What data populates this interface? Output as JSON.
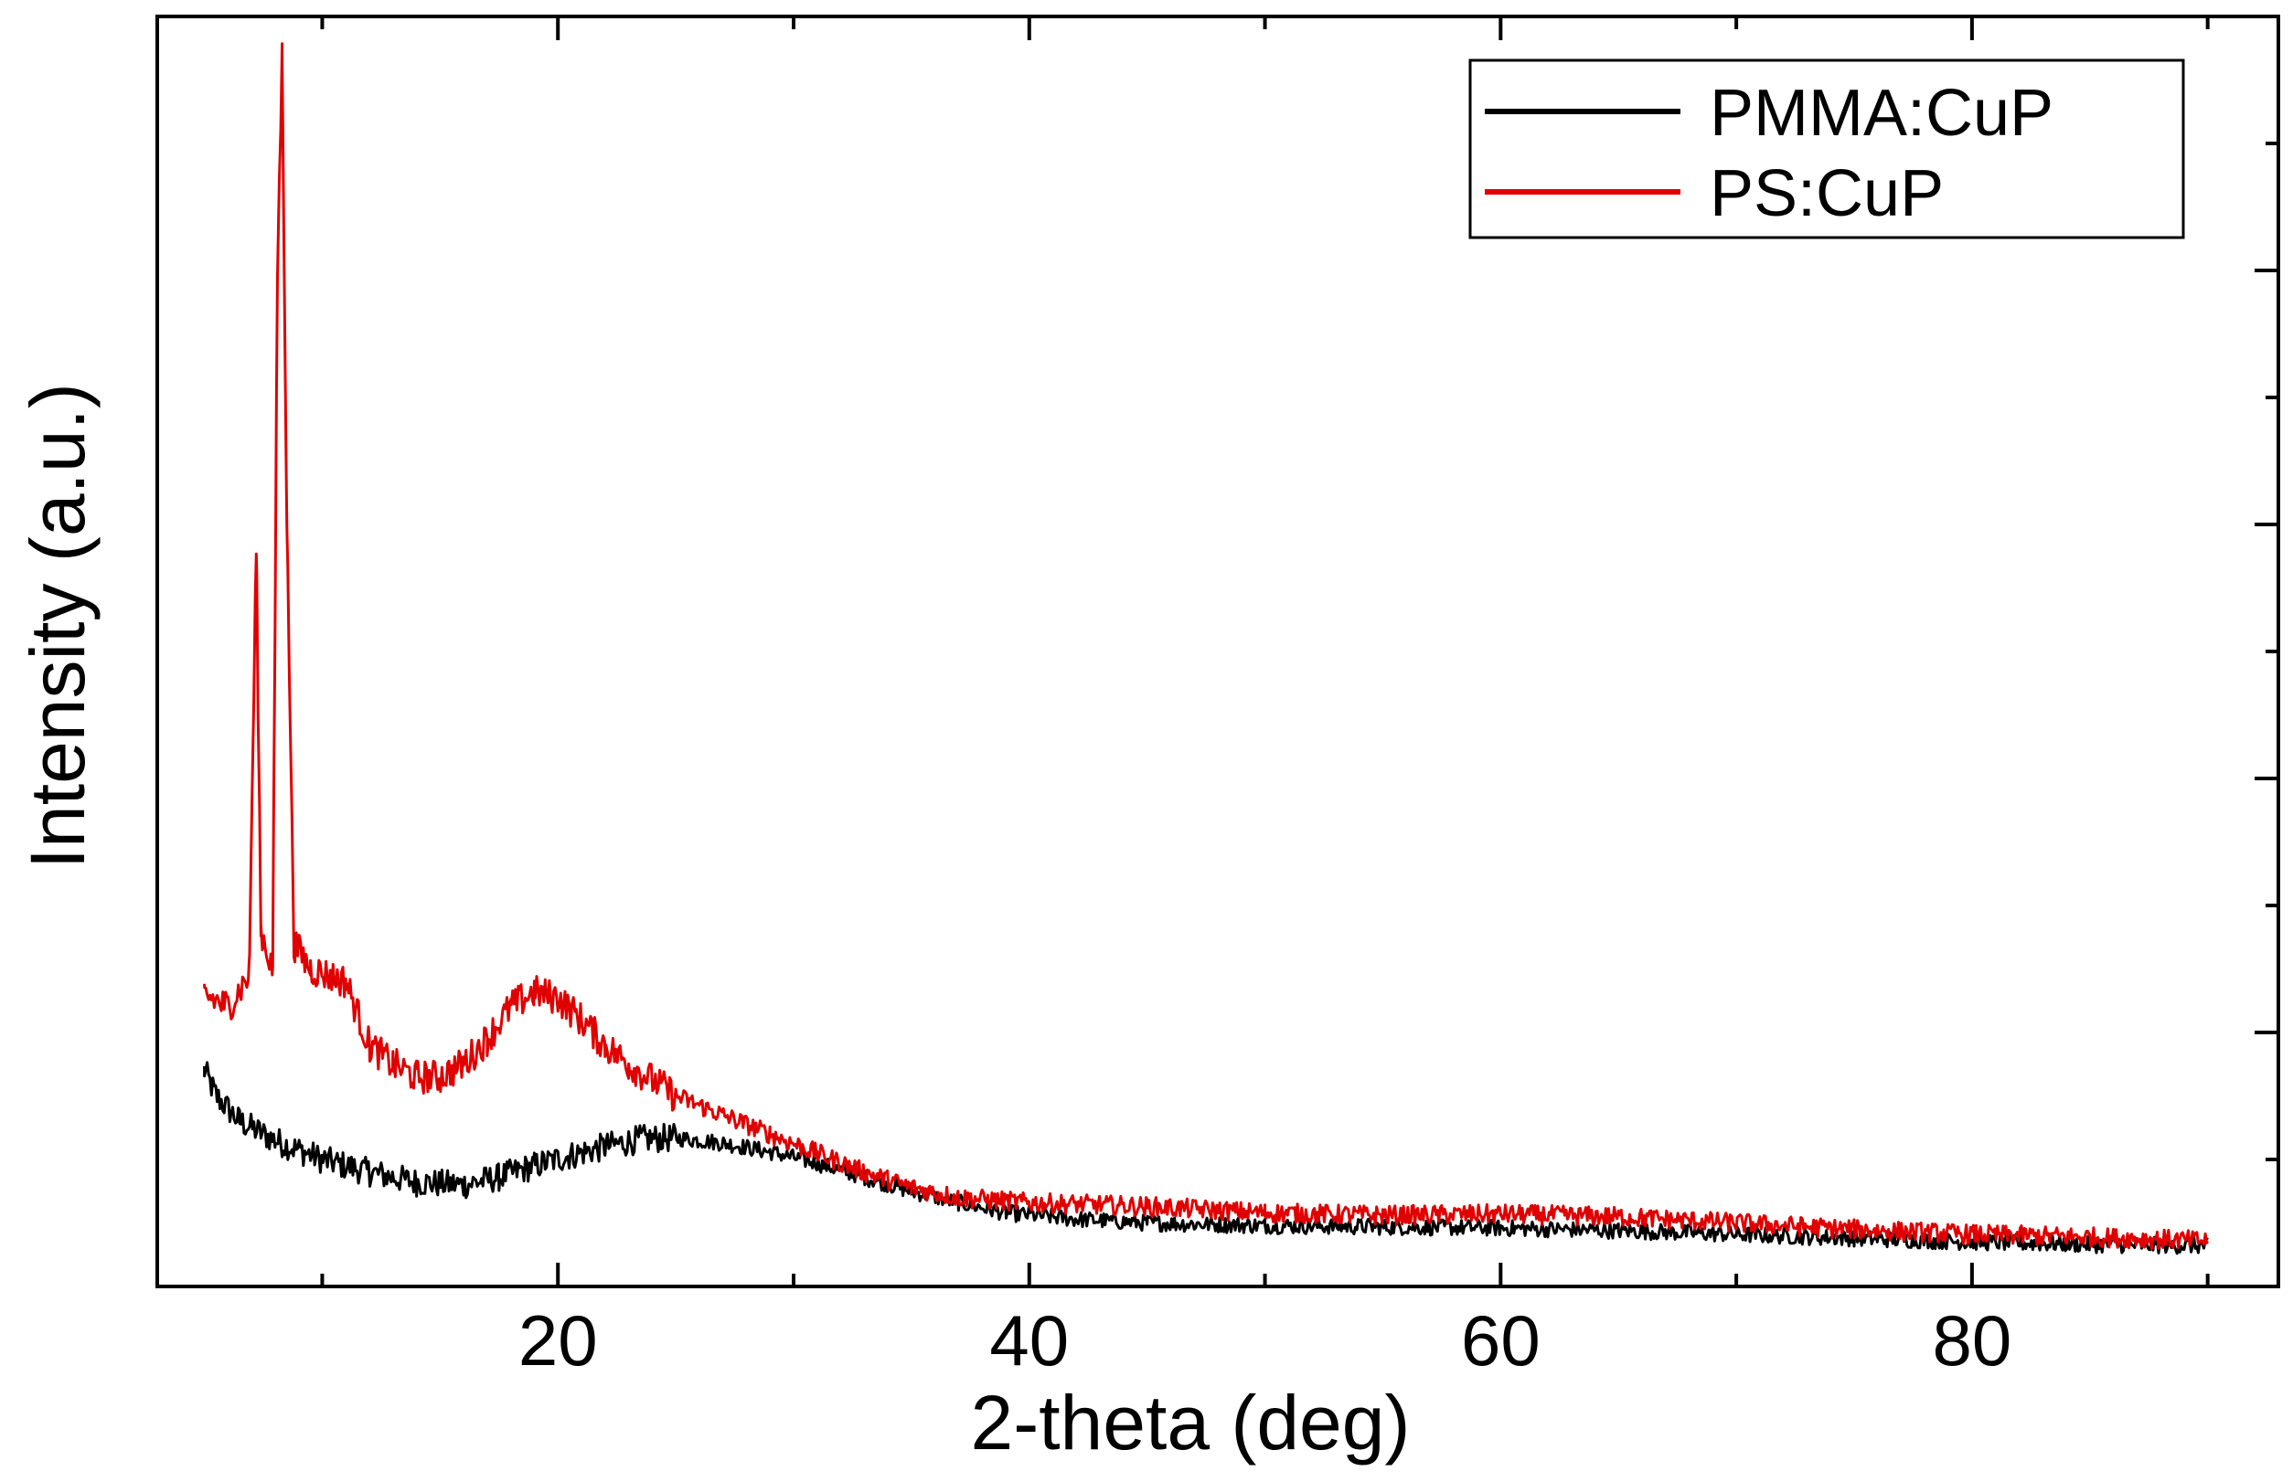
{
  "chart_data": {
    "type": "line",
    "title": "",
    "xlabel": "2-theta (deg)",
    "ylabel": "Intensity (a.u.)",
    "xlim": [
      3,
      93
    ],
    "ylim": [
      0,
      100
    ],
    "x_ticks": [
      20,
      40,
      60,
      80
    ],
    "x_tick_labels": [
      "20",
      "40",
      "60",
      "80"
    ],
    "x_minor_ticks": [
      10,
      30,
      50,
      70,
      90
    ],
    "y_tick_labels_shown": false,
    "grid": false,
    "legend": "top-right",
    "series": [
      {
        "name": "PMMA:CuP",
        "color": "#000000",
        "points": [
          [
            5.0,
            17.0
          ],
          [
            5.5,
            15.0
          ],
          [
            6.5,
            13.0
          ],
          [
            8.0,
            11.5
          ],
          [
            10.0,
            10.0
          ],
          [
            12.0,
            9.0
          ],
          [
            14.0,
            8.2
          ],
          [
            16.0,
            8.0
          ],
          [
            17.5,
            8.6
          ],
          [
            19.0,
            9.5
          ],
          [
            20.5,
            10.3
          ],
          [
            22.0,
            11.0
          ],
          [
            23.5,
            11.6
          ],
          [
            25.0,
            11.7
          ],
          [
            27.0,
            11.3
          ],
          [
            29.0,
            10.6
          ],
          [
            31.0,
            9.7
          ],
          [
            33.0,
            8.6
          ],
          [
            35.0,
            7.5
          ],
          [
            37.0,
            6.6
          ],
          [
            39.0,
            5.8
          ],
          [
            42.0,
            5.3
          ],
          [
            45.0,
            5.0
          ],
          [
            50.0,
            4.8
          ],
          [
            55.0,
            4.7
          ],
          [
            60.0,
            4.6
          ],
          [
            65.0,
            4.4
          ],
          [
            70.0,
            4.1
          ],
          [
            75.0,
            3.8
          ],
          [
            80.0,
            3.5
          ],
          [
            85.0,
            3.3
          ],
          [
            90.0,
            3.2
          ]
        ]
      },
      {
        "name": "PS:CuP",
        "color": "#e00000",
        "points": [
          [
            5.0,
            23.0
          ],
          [
            6.0,
            22.0
          ],
          [
            6.9,
            24.5
          ],
          [
            7.2,
            58.0
          ],
          [
            7.4,
            28.0
          ],
          [
            7.9,
            25.0
          ],
          [
            8.1,
            80.0
          ],
          [
            8.3,
            97.0
          ],
          [
            8.5,
            60.0
          ],
          [
            8.8,
            27.0
          ],
          [
            9.5,
            25.0
          ],
          [
            11.0,
            24.0
          ],
          [
            12.0,
            19.0
          ],
          [
            13.0,
            17.5
          ],
          [
            14.0,
            16.5
          ],
          [
            15.0,
            16.5
          ],
          [
            16.0,
            17.5
          ],
          [
            17.0,
            19.5
          ],
          [
            18.0,
            22.0
          ],
          [
            19.0,
            23.2
          ],
          [
            20.0,
            22.7
          ],
          [
            21.0,
            21.0
          ],
          [
            22.0,
            19.0
          ],
          [
            23.0,
            17.5
          ],
          [
            25.0,
            15.0
          ],
          [
            27.0,
            13.5
          ],
          [
            29.0,
            12.0
          ],
          [
            31.0,
            10.5
          ],
          [
            33.0,
            9.0
          ],
          [
            35.0,
            7.8
          ],
          [
            37.0,
            7.0
          ],
          [
            40.0,
            6.6
          ],
          [
            45.0,
            6.3
          ],
          [
            50.0,
            5.8
          ],
          [
            55.0,
            5.6
          ],
          [
            60.0,
            5.7
          ],
          [
            65.0,
            5.5
          ],
          [
            70.0,
            5.0
          ],
          [
            75.0,
            4.5
          ],
          [
            80.0,
            4.1
          ],
          [
            85.0,
            3.9
          ],
          [
            90.0,
            3.6
          ]
        ]
      }
    ]
  }
}
